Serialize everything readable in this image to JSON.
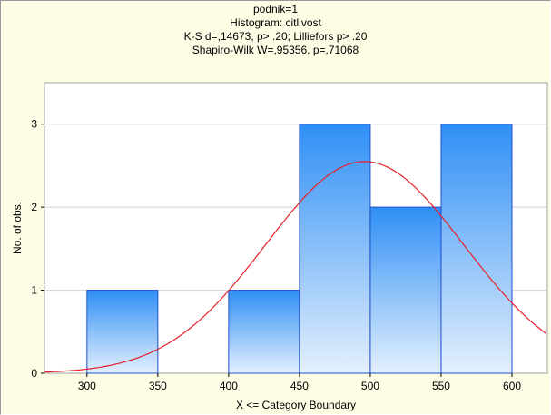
{
  "chart_data": {
    "type": "bar",
    "title_lines": [
      "podnik=1",
      "Histogram: citlivost",
      "K-S d=,14673, p> .20; Lilliefors p> .20",
      "Shapiro-Wilk W=,95356, p=,71068"
    ],
    "xlabel": "X <= Category Boundary",
    "ylabel": "No. of obs.",
    "xlim": [
      270,
      625
    ],
    "ylim": [
      0,
      3.5
    ],
    "xticks": [
      "300",
      "350",
      "400",
      "450",
      "500",
      "550",
      "600"
    ],
    "yticks": [
      "0",
      "1",
      "2",
      "3"
    ],
    "bins": [
      {
        "from": 300,
        "to": 350,
        "count": 1
      },
      {
        "from": 350,
        "to": 400,
        "count": 0
      },
      {
        "from": 400,
        "to": 450,
        "count": 1
      },
      {
        "from": 450,
        "to": 500,
        "count": 3
      },
      {
        "from": 500,
        "to": 550,
        "count": 2
      },
      {
        "from": 550,
        "to": 600,
        "count": 3
      }
    ],
    "normal_curve": {
      "mean": 496,
      "sd": 70,
      "peak": 2.55
    },
    "grid": true,
    "colors": {
      "bar_top": "#2f8ff5",
      "bar_bottom": "#e4f0fd",
      "bar_edge": "#1f4fd0",
      "curve": "#e8202a",
      "grid": "#d4d4d4",
      "plot_bg": "#ffffff",
      "frame_bg": "#fdfde6"
    }
  }
}
